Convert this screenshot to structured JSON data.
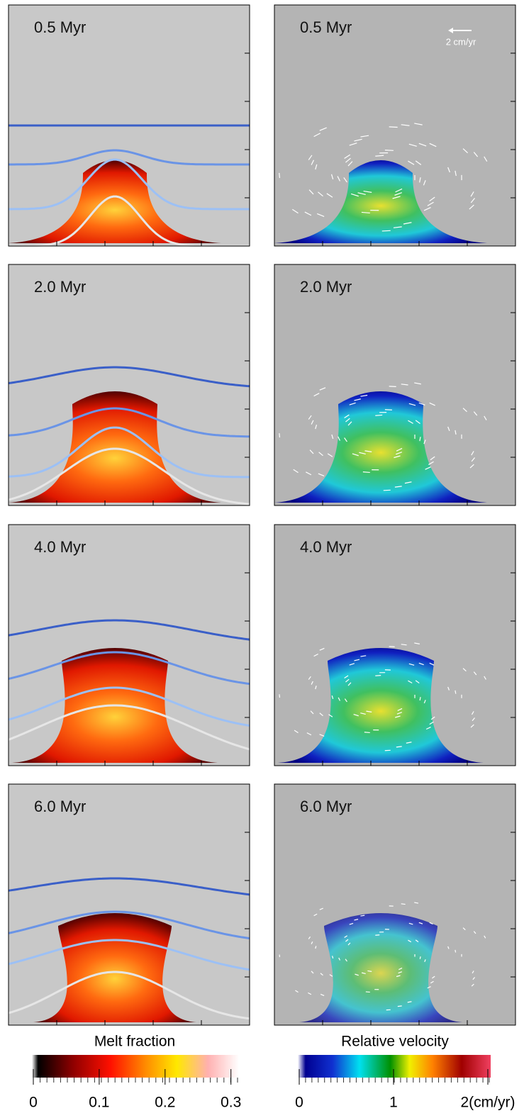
{
  "rows": [
    {
      "time": "0.5 Myr"
    },
    {
      "time": "2.0 Myr"
    },
    {
      "time": "4.0 Myr"
    },
    {
      "time": "6.0 Myr"
    }
  ],
  "scale_arrow": "2 cm/yr",
  "colorbars": [
    {
      "label": "Melt fraction",
      "lim": [
        0,
        0.31
      ],
      "ticks": [
        0,
        0.1,
        0.2,
        0.3
      ]
    },
    {
      "label": "Relative velocity",
      "lim": [
        0,
        2
      ],
      "ticks": [
        0,
        1,
        {
          "value": 2,
          "label": "2(cm/yr)"
        }
      ]
    }
  ]
}
